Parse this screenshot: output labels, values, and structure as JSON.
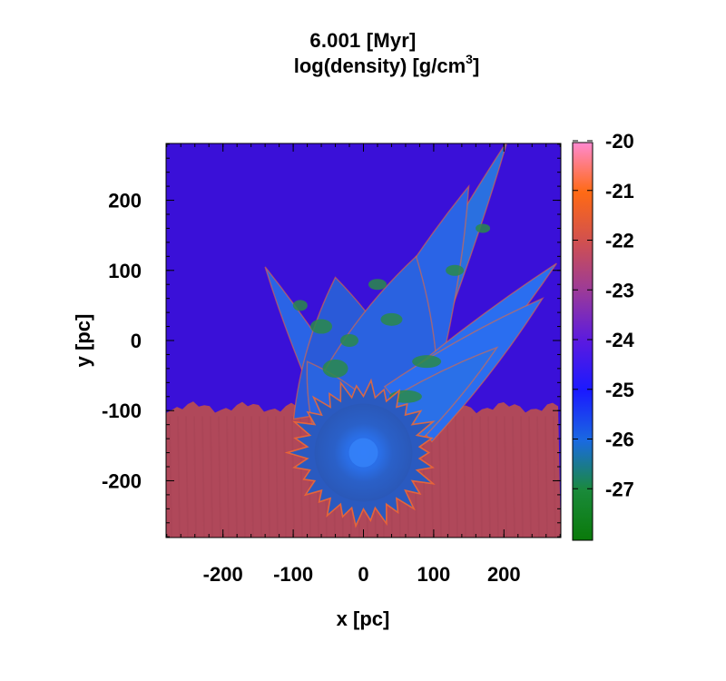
{
  "chart_data": {
    "type": "heatmap",
    "title_line1": "6.001 [Myr]",
    "title_line2": "log(density) [g/cm",
    "title_line2_sup": "3",
    "title_line2_end": "]",
    "xlabel": "x [pc]",
    "ylabel": "y [pc]",
    "xlim": [
      -281,
      281
    ],
    "ylim": [
      -281,
      281
    ],
    "x_ticks": [
      -200,
      -100,
      0,
      100,
      200
    ],
    "x_tick_labels": [
      "-200",
      "-100",
      "0",
      "100",
      "200"
    ],
    "y_ticks": [
      200,
      100,
      0,
      -100,
      -200
    ],
    "y_tick_labels": [
      "200",
      "100",
      "0",
      "-100",
      "-200"
    ],
    "colorbar": {
      "range": [
        -28,
        -20
      ],
      "ticks": [
        -20,
        -21,
        -22,
        -23,
        -24,
        -25,
        -26,
        -27
      ],
      "tick_labels": [
        "-20",
        "-21",
        "-22",
        "-23",
        "-24",
        "-25",
        "-26",
        "-27"
      ],
      "colors": [
        "#ff8ad0",
        "#ff6a14",
        "#d05050",
        "#9a3a9a",
        "#5a1ae0",
        "#1a1aff",
        "#1a6ae0",
        "#1a8a3a",
        "#0a7a0a"
      ]
    },
    "regions": {
      "ambient_upper_value": -24.2,
      "ambient_lower_value": -21.7,
      "interface_y_pc": -95,
      "bubble_center_pc": [
        0,
        -160
      ]
    }
  },
  "colors": {
    "upper_medium": "#3a10d8",
    "lower_medium": "#b0485a",
    "shell": "#2a64e6",
    "shell_bright": "#3a8aff",
    "green_clump": "#2a8a4a",
    "edge_orange": "#ff6a28"
  }
}
